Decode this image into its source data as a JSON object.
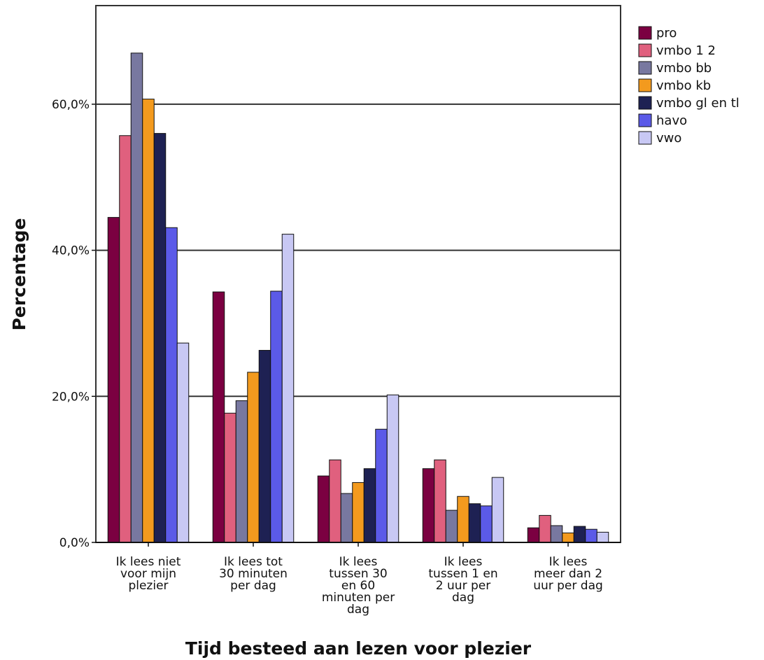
{
  "chart_data": {
    "type": "bar",
    "title": "",
    "xlabel": "Tijd besteed aan lezen voor plezier",
    "ylabel": "Percentage",
    "ylim": [
      0,
      73.5
    ],
    "yticks": [
      0,
      20,
      40,
      60
    ],
    "ytick_labels": [
      "0,0%",
      "20,0%",
      "40,0%",
      "60,0%"
    ],
    "grid": true,
    "legend_position": "right",
    "categories": [
      [
        "Ik lees niet",
        "voor mijn",
        "plezier"
      ],
      [
        "Ik lees tot",
        "30 minuten",
        "per dag"
      ],
      [
        "Ik lees",
        "tussen 30",
        "en 60",
        "minuten per",
        "dag"
      ],
      [
        "Ik lees",
        "tussen 1 en",
        "2 uur per",
        "dag"
      ],
      [
        "Ik lees",
        "meer dan 2",
        "uur per dag"
      ]
    ],
    "series": [
      {
        "name": "pro",
        "color": "#7b0041",
        "values": [
          44.5,
          34.3,
          9.1,
          10.1,
          2.0
        ]
      },
      {
        "name": "vmbo 1 2",
        "color": "#e0607e",
        "values": [
          55.7,
          17.7,
          11.3,
          11.3,
          3.7
        ]
      },
      {
        "name": "vmbo bb",
        "color": "#7878a0",
        "values": [
          67.0,
          19.4,
          6.7,
          4.4,
          2.3
        ]
      },
      {
        "name": "vmbo kb",
        "color": "#f39a1e",
        "values": [
          60.7,
          23.3,
          8.2,
          6.3,
          1.3
        ]
      },
      {
        "name": "vmbo gl en tl",
        "color": "#1e2153",
        "values": [
          56.0,
          26.3,
          10.1,
          5.3,
          2.2
        ]
      },
      {
        "name": "havo",
        "color": "#5b5ae8",
        "values": [
          43.1,
          34.4,
          15.5,
          5.0,
          1.8
        ]
      },
      {
        "name": "vwo",
        "color": "#c8c8f4",
        "values": [
          27.3,
          42.2,
          20.2,
          8.9,
          1.4
        ]
      }
    ]
  }
}
